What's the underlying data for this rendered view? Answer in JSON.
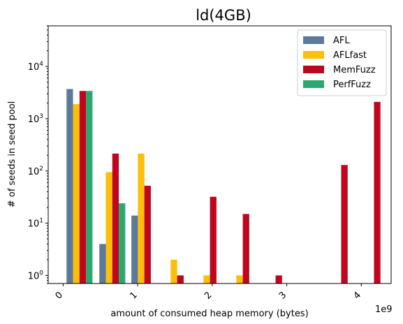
{
  "chart_data": {
    "type": "bar",
    "title": "ld(4GB)",
    "xlabel": "amount of consumed heap memory (bytes)",
    "ylabel": "# of seeds in seed pool",
    "x_offset_label": "1e9",
    "yscale": "log",
    "ylim": [
      0.7,
      60000
    ],
    "xlim": [
      -0.2,
      4.4
    ],
    "x_ticks": [
      {
        "value": 0,
        "label": "0"
      },
      {
        "value": 1,
        "label": "1"
      },
      {
        "value": 2,
        "label": "2"
      },
      {
        "value": 3,
        "label": "3"
      },
      {
        "value": 4,
        "label": "4"
      }
    ],
    "y_ticks": [
      {
        "value": 1,
        "base": "10",
        "exp": "0"
      },
      {
        "value": 10,
        "base": "10",
        "exp": "1"
      },
      {
        "value": 100,
        "base": "10",
        "exp": "2"
      },
      {
        "value": 1000,
        "base": "10",
        "exp": "3"
      },
      {
        "value": 10000,
        "base": "10",
        "exp": "4"
      }
    ],
    "bin_centers": [
      0.22,
      0.66,
      1.09,
      1.53,
      1.97,
      2.41,
      2.85,
      3.29,
      3.73,
      4.17
    ],
    "bar_width": 0.087,
    "series": [
      {
        "name": "AFL",
        "color": "#5b7a99",
        "values": [
          3700,
          4,
          14,
          0,
          0,
          0,
          0,
          0,
          0,
          0
        ]
      },
      {
        "name": "AFLfast",
        "color": "#fcbf0a",
        "values": [
          1900,
          95,
          215,
          2,
          1,
          1,
          0,
          0,
          0,
          0
        ]
      },
      {
        "name": "MemFuzz",
        "color": "#c0061f",
        "values": [
          3400,
          215,
          52,
          1,
          32,
          15,
          1,
          0,
          130,
          2100
        ]
      },
      {
        "name": "PerfFuzz",
        "color": "#2ca86e",
        "values": [
          3400,
          24,
          0,
          0,
          0,
          0,
          0,
          0,
          0,
          0
        ]
      }
    ],
    "legend_position": "upper-right",
    "grid": false
  }
}
